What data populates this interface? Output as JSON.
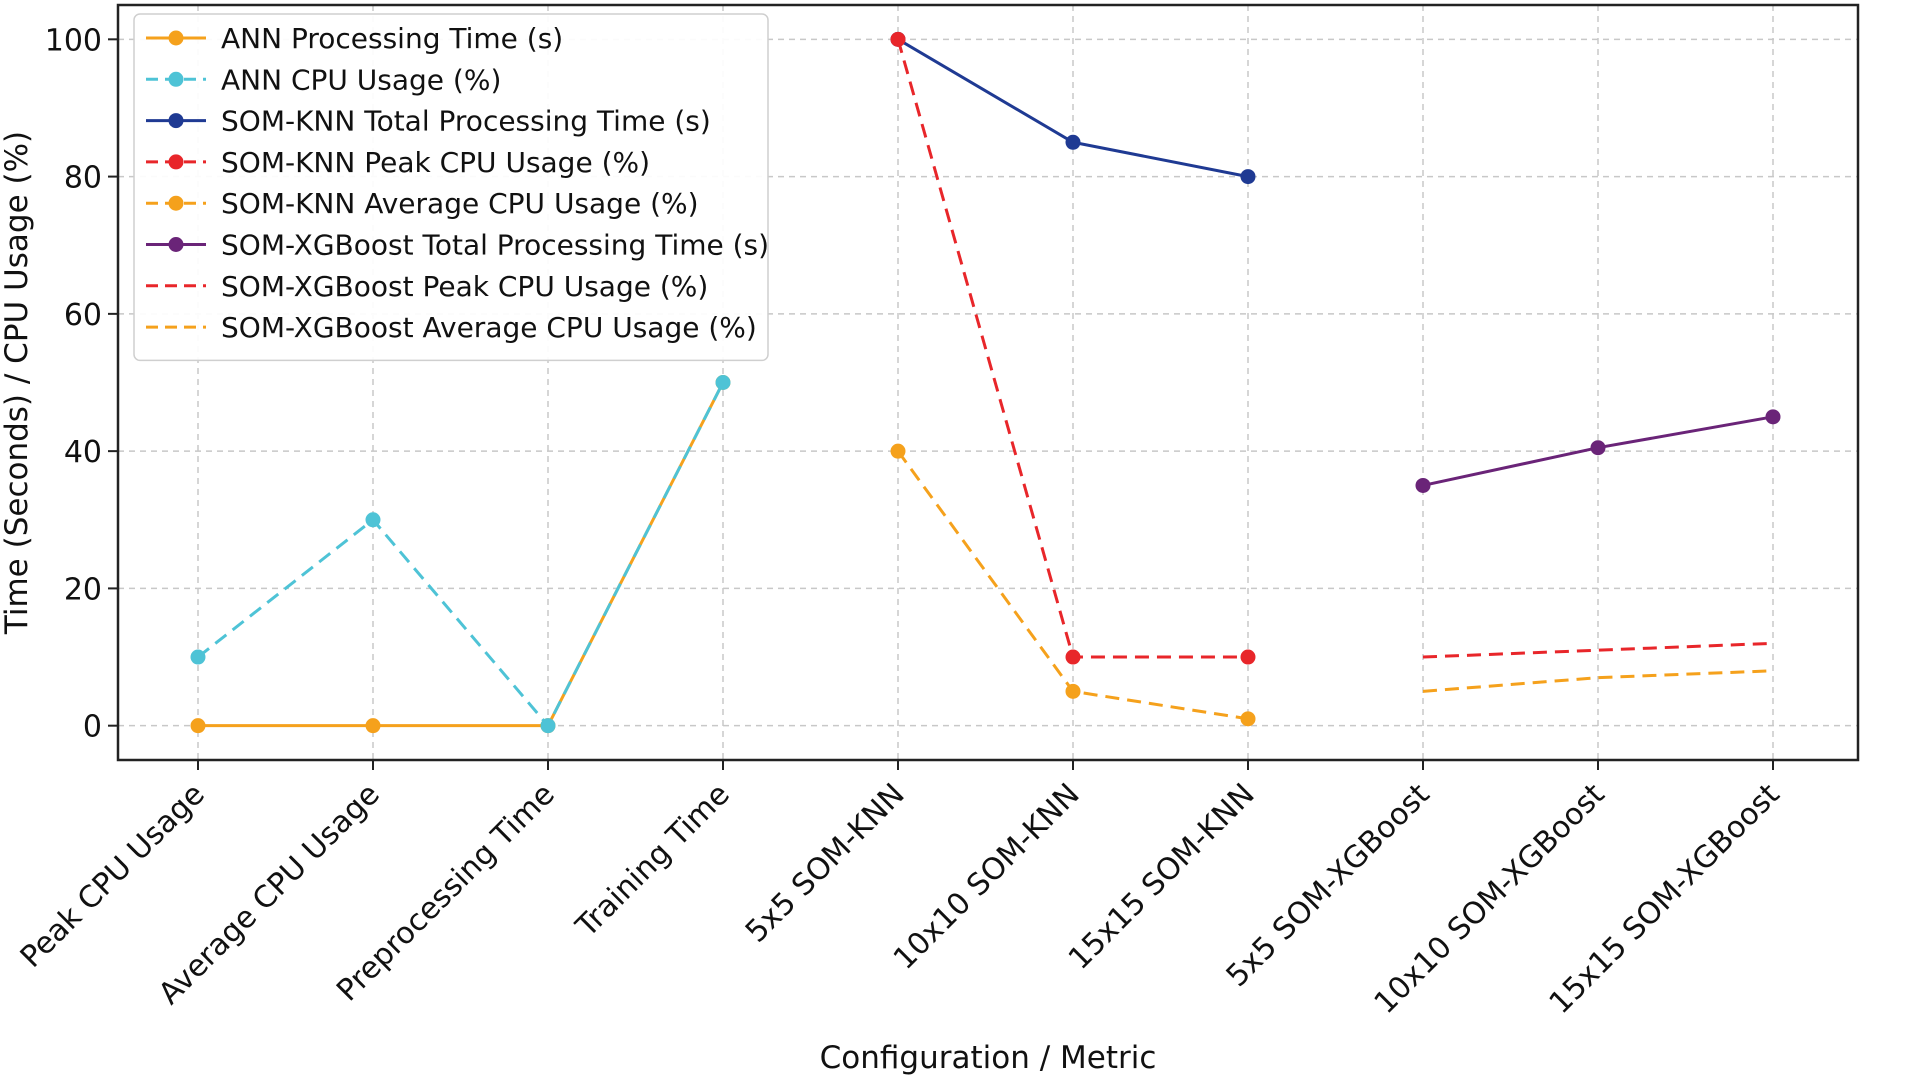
{
  "chart_data": {
    "type": "line",
    "title": "",
    "xlabel": "Configuration / Metric",
    "ylabel": "Time (Seconds) / CPU Usage (%)",
    "categories": [
      "Peak CPU Usage",
      "Average CPU Usage",
      "Preprocessing Time",
      "Training Time",
      "5x5 SOM-KNN",
      "10x10 SOM-KNN",
      "15x15 SOM-KNN",
      "5x5 SOM-XGBoost",
      "10x10 SOM-XGBoost",
      "15x15 SOM-XGBoost"
    ],
    "ylim": [
      -5,
      105
    ],
    "yticks": [
      0,
      20,
      40,
      60,
      80,
      100
    ],
    "grid": true,
    "legend_position": "top-left",
    "series": [
      {
        "name": "ANN Processing Time (s)",
        "color": "#f5a11c",
        "dash": "solid",
        "marker": true,
        "values": [
          0,
          0,
          0,
          50,
          null,
          null,
          null,
          null,
          null,
          null
        ]
      },
      {
        "name": "ANN CPU Usage (%)",
        "color": "#4ec3d6",
        "dash": "dashed",
        "marker": true,
        "values": [
          10,
          30,
          0,
          50,
          null,
          null,
          null,
          null,
          null,
          null
        ]
      },
      {
        "name": "SOM-KNN Total Processing Time (s)",
        "color": "#1f3a93",
        "dash": "solid",
        "marker": true,
        "values": [
          null,
          null,
          null,
          null,
          100,
          85,
          80,
          null,
          null,
          null
        ]
      },
      {
        "name": "SOM-KNN Peak CPU Usage (%)",
        "color": "#e8262a",
        "dash": "dashed",
        "marker": true,
        "values": [
          null,
          null,
          null,
          null,
          100,
          10,
          10,
          null,
          null,
          null
        ]
      },
      {
        "name": "SOM-KNN Average CPU Usage (%)",
        "color": "#f5a11c",
        "dash": "dashed",
        "marker": true,
        "values": [
          null,
          null,
          null,
          null,
          40,
          5,
          1,
          null,
          null,
          null
        ]
      },
      {
        "name": "SOM-XGBoost Total Processing Time (s)",
        "color": "#6a2478",
        "dash": "solid",
        "marker": true,
        "values": [
          null,
          null,
          null,
          null,
          null,
          null,
          null,
          35,
          40.5,
          45
        ]
      },
      {
        "name": "SOM-XGBoost Peak CPU Usage (%)",
        "color": "#e8262a",
        "dash": "dashed",
        "marker": false,
        "values": [
          null,
          null,
          null,
          null,
          null,
          null,
          null,
          10,
          11,
          12
        ]
      },
      {
        "name": "SOM-XGBoost Average CPU Usage (%)",
        "color": "#f5a11c",
        "dash": "dashed",
        "marker": false,
        "values": [
          null,
          null,
          null,
          null,
          null,
          null,
          null,
          5,
          7,
          8
        ]
      }
    ]
  }
}
